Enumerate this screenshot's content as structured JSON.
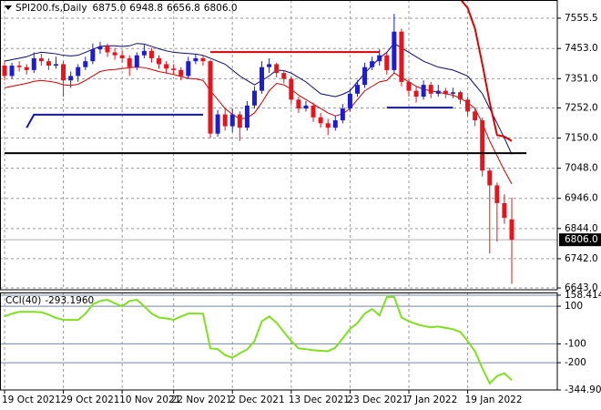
{
  "chart_data": [
    {
      "type": "candlestick",
      "title": "SPI200.fs,Daily",
      "last_ohlc": [
        {
          "value": 6875,
          "label": "6875.0"
        },
        {
          "value": 6948.8,
          "label": "6948.8"
        },
        {
          "value": 6656.8,
          "label": "6656.8"
        },
        {
          "value": 6806,
          "label": "6806.0"
        }
      ],
      "categories": [
        "19 Oct 2021",
        null,
        null,
        null,
        null,
        null,
        null,
        null,
        "29 Oct 2021",
        null,
        null,
        null,
        null,
        null,
        null,
        null,
        "10 Nov 2021",
        null,
        null,
        null,
        null,
        null,
        null,
        "22 Nov 2021",
        null,
        null,
        null,
        null,
        null,
        null,
        null,
        "2 Dec 2021",
        null,
        null,
        null,
        null,
        null,
        null,
        null,
        "13 Dec 2021",
        null,
        null,
        null,
        null,
        null,
        null,
        null,
        "23 Dec 2021",
        null,
        null,
        null,
        null,
        null,
        null,
        null,
        "7 Jan 2022",
        null,
        null,
        null,
        null,
        null,
        null,
        null,
        "19 Jan 2022",
        null,
        null,
        null,
        null,
        null,
        null
      ],
      "ohlc": {
        "open": [
          7395,
          7360,
          7395,
          7390,
          7380,
          7420,
          7410,
          7395,
          7400,
          7345,
          7360,
          7390,
          7410,
          7450,
          7460,
          7440,
          7430,
          7420,
          7390,
          7430,
          7445,
          7420,
          7400,
          7385,
          7380,
          7360,
          7410,
          7420,
          7410,
          7165,
          7230,
          7190,
          7230,
          7185,
          7260,
          7310,
          7390,
          7400,
          7370,
          7350,
          7280,
          7250,
          7260,
          7220,
          7200,
          7185,
          7210,
          7250,
          7300,
          7330,
          7390,
          7410,
          7430,
          7380,
          7510,
          7340,
          7310,
          7290,
          7330,
          7300,
          7310,
          7300,
          7305,
          7280,
          7240,
          7210,
          7040,
          6990,
          6930,
          6875
        ],
        "high": [
          7410,
          7405,
          7410,
          7400,
          7440,
          7435,
          7420,
          7425,
          7410,
          7375,
          7400,
          7425,
          7470,
          7475,
          7470,
          7455,
          7445,
          7430,
          7440,
          7465,
          7455,
          7430,
          7410,
          7400,
          7390,
          7425,
          7435,
          7430,
          7415,
          7245,
          7250,
          7250,
          7240,
          7275,
          7325,
          7410,
          7420,
          7405,
          7380,
          7360,
          7290,
          7275,
          7270,
          7235,
          7215,
          7225,
          7265,
          7315,
          7345,
          7405,
          7425,
          7450,
          7440,
          7570,
          7520,
          7350,
          7325,
          7345,
          7340,
          7330,
          7320,
          7320,
          7310,
          7290,
          7250,
          7220,
          7050,
          7000,
          6960,
          6948.8
        ],
        "low": [
          7345,
          7350,
          7375,
          7365,
          7370,
          7395,
          7380,
          7385,
          7290,
          7320,
          7340,
          7380,
          7400,
          7435,
          7425,
          7415,
          7405,
          7360,
          7380,
          7420,
          7405,
          7385,
          7370,
          7365,
          7345,
          7350,
          7400,
          7395,
          7150,
          7155,
          7175,
          7170,
          7140,
          7175,
          7250,
          7300,
          7370,
          7355,
          7335,
          7265,
          7235,
          7240,
          7205,
          7185,
          7160,
          7175,
          7200,
          7240,
          7290,
          7320,
          7380,
          7395,
          7365,
          7370,
          7325,
          7290,
          7270,
          7280,
          7285,
          7290,
          7285,
          7285,
          7265,
          7225,
          7190,
          7020,
          6760,
          6800,
          6860,
          6656.8
        ],
        "close": [
          7360,
          7395,
          7390,
          7380,
          7420,
          7410,
          7395,
          7400,
          7345,
          7360,
          7390,
          7410,
          7450,
          7460,
          7440,
          7430,
          7420,
          7390,
          7430,
          7445,
          7420,
          7400,
          7385,
          7380,
          7360,
          7410,
          7420,
          7410,
          7165,
          7230,
          7190,
          7230,
          7185,
          7260,
          7310,
          7390,
          7400,
          7370,
          7350,
          7280,
          7250,
          7260,
          7220,
          7200,
          7185,
          7210,
          7250,
          7300,
          7330,
          7390,
          7410,
          7430,
          7380,
          7510,
          7340,
          7310,
          7290,
          7330,
          7300,
          7310,
          7300,
          7305,
          7280,
          7240,
          7210,
          7040,
          6990,
          6930,
          6880,
          6806
        ]
      },
      "up_color": "#1c1cd0",
      "down_color": "#e8141c",
      "lines": [
        {
          "color": "#0a0a70",
          "values": [
            7410,
            7415,
            7420,
            7425,
            7435,
            7440,
            7438,
            7435,
            7430,
            7428,
            7430,
            7440,
            7450,
            7460,
            7462,
            7462,
            7460,
            7462,
            7470,
            7468,
            7460,
            7452,
            7445,
            7440,
            7438,
            7436,
            7434,
            7430,
            7420,
            7410,
            7400,
            7380,
            7360,
            7345,
            7330,
            7345,
            7360,
            7380,
            7378,
            7370,
            7355,
            7340,
            7320,
            7300,
            7295,
            7290,
            7298,
            7310,
            7340,
            7370,
            7395,
            7420,
            7440,
            7470,
            7455,
            7440,
            7425,
            7410,
            7400,
            7390,
            7385,
            7380,
            7370,
            7360,
            7330,
            7300,
            7250,
            7200,
            7150,
            7095
          ]
        },
        {
          "color": "#d40000",
          "values": [
            7320,
            7325,
            7330,
            7335,
            7342,
            7345,
            7342,
            7338,
            7330,
            7328,
            7332,
            7345,
            7360,
            7375,
            7380,
            7382,
            7385,
            7388,
            7390,
            7388,
            7382,
            7375,
            7370,
            7365,
            7358,
            7352,
            7350,
            7345,
            7310,
            7280,
            7250,
            7230,
            7215,
            7218,
            7235,
            7270,
            7310,
            7335,
            7330,
            7315,
            7295,
            7280,
            7265,
            7250,
            7235,
            7225,
            7232,
            7250,
            7280,
            7310,
            7325,
            7340,
            7345,
            7370,
            7355,
            7340,
            7325,
            7315,
            7310,
            7305,
            7300,
            7295,
            7285,
            7270,
            7250,
            7200,
            7140,
            7090,
            7040,
            6995
          ]
        }
      ],
      "signal": {
        "color": "#e00000",
        "values": [
          null,
          null,
          null,
          null,
          null,
          null,
          null,
          null,
          null,
          null,
          null,
          null,
          null,
          null,
          null,
          null,
          null,
          null,
          null,
          null,
          null,
          null,
          null,
          null,
          null,
          null,
          null,
          null,
          null,
          null,
          null,
          null,
          null,
          null,
          null,
          null,
          null,
          null,
          null,
          null,
          null,
          null,
          null,
          null,
          null,
          null,
          null,
          null,
          null,
          null,
          null,
          null,
          null,
          null,
          null,
          null,
          null,
          null,
          null,
          null,
          null,
          null,
          7620,
          7590,
          7520,
          7400,
          7270,
          7160,
          7155,
          7140
        ]
      },
      "drawings": [
        {
          "color": "#e00000",
          "x": [
            28,
            51
          ],
          "y": [
            7441,
            7441
          ]
        },
        {
          "color": "#1010c0",
          "x": [
            3,
            4,
            27
          ],
          "y": [
            7185,
            7229,
            7229
          ]
        },
        {
          "color": "#1010c0",
          "x": [
            52,
            61
          ],
          "y": [
            7253,
            7253
          ]
        },
        {
          "color": "#000000",
          "x": [
            0,
            71
          ],
          "y": [
            7099,
            7099
          ]
        }
      ],
      "last_price": {
        "value": 6806,
        "label": "6806.0"
      },
      "ylim": [
        6637,
        7617
      ],
      "yticks": [
        7555.5,
        {
          "value": 7453,
          "label": "7453.0"
        },
        {
          "value": 7351,
          "label": "7351.0"
        },
        {
          "value": 7252,
          "label": "7252.0"
        },
        {
          "value": 7150,
          "label": "7150.0"
        },
        {
          "value": 7048,
          "label": "7048.0"
        },
        {
          "value": 6946,
          "label": "6946.0"
        },
        {
          "value": 6844,
          "label": "6844.0"
        },
        {
          "value": 6742,
          "label": "6742.0"
        },
        {
          "value": 6643,
          "label": "6643.0"
        }
      ],
      "grid": true
    },
    {
      "type": "line",
      "title": "CCI(40)",
      "last_value": {
        "value": -293.196,
        "label": "-293.1960"
      },
      "color": "#80e020",
      "values": [
        46,
        60,
        70,
        70,
        70,
        68,
        55,
        38,
        28,
        27,
        27,
        60,
        110,
        128,
        134,
        115,
        100,
        128,
        134,
        100,
        61,
        40,
        35,
        28,
        45,
        61,
        61,
        60,
        -124,
        -128,
        -160,
        -173,
        -150,
        -130,
        -85,
        20,
        46,
        12,
        -37,
        -85,
        -124,
        -128,
        -134,
        -137,
        -139,
        -120,
        -71,
        -20,
        10,
        61,
        85,
        51,
        149,
        150,
        40,
        20,
        5,
        -5,
        -12,
        -8,
        -15,
        -22,
        -37,
        -85,
        -140,
        -230,
        -310,
        -271,
        -256,
        -293.196
      ],
      "ylim": [
        -344.901,
        173
      ],
      "yticks": [
        158.4144,
        100,
        -100,
        -200,
        -344.901
      ]
    }
  ]
}
